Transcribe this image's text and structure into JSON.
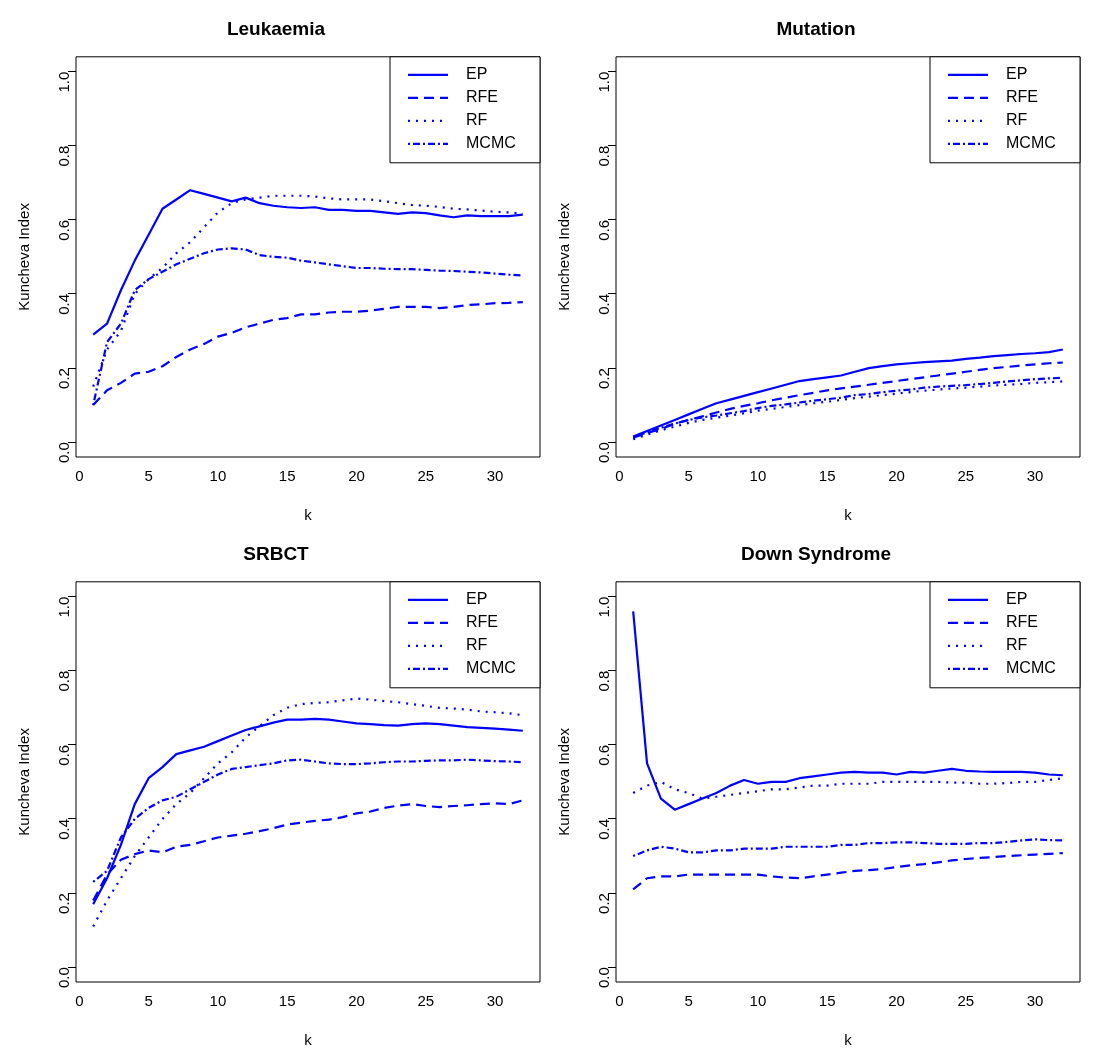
{
  "chart_data": [
    {
      "type": "line",
      "title": "Leukaemia",
      "xlabel": "k",
      "ylabel": "Kuncheva Index",
      "x": [
        1,
        2,
        3,
        4,
        5,
        6,
        7,
        8,
        9,
        10,
        11,
        12,
        13,
        14,
        15,
        16,
        17,
        18,
        19,
        20,
        21,
        22,
        23,
        24,
        25,
        26,
        27,
        28,
        29,
        30,
        31,
        32
      ],
      "xlim": [
        -0.24,
        33.24
      ],
      "xticks": [
        0,
        5,
        10,
        15,
        20,
        25,
        30
      ],
      "ylim": [
        -0.04,
        1.04
      ],
      "yticks": [
        {
          "value": 0,
          "label": "0.0"
        },
        {
          "value": 0.2,
          "label": "0.2"
        },
        {
          "value": 0.4,
          "label": "0.4"
        },
        {
          "value": 0.6,
          "label": "0.6"
        },
        {
          "value": 0.8,
          "label": "0.8"
        },
        {
          "value": 1,
          "label": "1.0"
        }
      ],
      "grid": false,
      "legend": "top right",
      "marker": "none",
      "series": [
        {
          "name": "EP",
          "color": "#0000ff",
          "line_style": "solid",
          "values": [
            0.29,
            0.32,
            0.41,
            0.49,
            0.56,
            0.63,
            0.655,
            0.68,
            0.67,
            0.66,
            0.65,
            0.66,
            0.645,
            0.638,
            0.634,
            0.632,
            0.634,
            0.627,
            0.627,
            0.624,
            0.624,
            0.62,
            0.616,
            0.62,
            0.618,
            0.612,
            0.607,
            0.612,
            0.61,
            0.61,
            0.61,
            0.614
          ]
        },
        {
          "name": "RFE",
          "color": "#0000ff",
          "line_style": "dashed",
          "values": [
            0.1,
            0.14,
            0.16,
            0.185,
            0.19,
            0.205,
            0.23,
            0.25,
            0.265,
            0.285,
            0.295,
            0.31,
            0.32,
            0.33,
            0.335,
            0.345,
            0.345,
            0.35,
            0.352,
            0.352,
            0.355,
            0.36,
            0.365,
            0.365,
            0.365,
            0.362,
            0.365,
            0.37,
            0.372,
            0.375,
            0.376,
            0.378
          ]
        },
        {
          "name": "RF",
          "color": "#0000ff",
          "line_style": "dotted",
          "values": [
            0.15,
            0.25,
            0.3,
            0.4,
            0.44,
            0.47,
            0.51,
            0.54,
            0.58,
            0.62,
            0.645,
            0.655,
            0.66,
            0.665,
            0.665,
            0.665,
            0.663,
            0.658,
            0.655,
            0.655,
            0.655,
            0.65,
            0.645,
            0.64,
            0.638,
            0.635,
            0.63,
            0.628,
            0.625,
            0.622,
            0.62,
            0.617
          ]
        },
        {
          "name": "MCMC",
          "color": "#0000ff",
          "line_style": "dashdot",
          "values": [
            0.1,
            0.27,
            0.32,
            0.41,
            0.44,
            0.46,
            0.48,
            0.495,
            0.51,
            0.52,
            0.523,
            0.52,
            0.505,
            0.5,
            0.498,
            0.49,
            0.485,
            0.48,
            0.475,
            0.47,
            0.47,
            0.468,
            0.467,
            0.467,
            0.465,
            0.463,
            0.462,
            0.46,
            0.458,
            0.455,
            0.452,
            0.45
          ]
        }
      ]
    },
    {
      "type": "line",
      "title": "Mutation",
      "xlabel": "k",
      "ylabel": "Kuncheva Index",
      "x": [
        1,
        2,
        3,
        4,
        5,
        6,
        7,
        8,
        9,
        10,
        11,
        12,
        13,
        14,
        15,
        16,
        17,
        18,
        19,
        20,
        21,
        22,
        23,
        24,
        25,
        26,
        27,
        28,
        29,
        30,
        31,
        32
      ],
      "xlim": [
        -0.24,
        33.24
      ],
      "xticks": [
        0,
        5,
        10,
        15,
        20,
        25,
        30
      ],
      "ylim": [
        -0.04,
        1.04
      ],
      "yticks": [
        {
          "value": 0,
          "label": "0.0"
        },
        {
          "value": 0.2,
          "label": "0.2"
        },
        {
          "value": 0.4,
          "label": "0.4"
        },
        {
          "value": 0.6,
          "label": "0.6"
        },
        {
          "value": 0.8,
          "label": "0.8"
        },
        {
          "value": 1,
          "label": "1.0"
        }
      ],
      "grid": false,
      "legend": "top right",
      "marker": "none",
      "series": [
        {
          "name": "EP",
          "color": "#0000ff",
          "line_style": "solid",
          "values": [
            0.015,
            0.03,
            0.045,
            0.06,
            0.075,
            0.09,
            0.105,
            0.115,
            0.125,
            0.135,
            0.145,
            0.155,
            0.165,
            0.17,
            0.175,
            0.18,
            0.19,
            0.2,
            0.205,
            0.21,
            0.213,
            0.216,
            0.218,
            0.22,
            0.225,
            0.228,
            0.232,
            0.235,
            0.238,
            0.24,
            0.243,
            0.25
          ]
        },
        {
          "name": "RFE",
          "color": "#0000ff",
          "line_style": "dashed",
          "values": [
            0.012,
            0.025,
            0.035,
            0.05,
            0.06,
            0.07,
            0.08,
            0.09,
            0.098,
            0.105,
            0.113,
            0.12,
            0.127,
            0.133,
            0.14,
            0.145,
            0.15,
            0.155,
            0.16,
            0.165,
            0.17,
            0.175,
            0.18,
            0.185,
            0.19,
            0.195,
            0.2,
            0.203,
            0.207,
            0.21,
            0.213,
            0.215
          ]
        },
        {
          "name": "RF",
          "color": "#0000ff",
          "line_style": "dotted",
          "values": [
            0.008,
            0.02,
            0.032,
            0.042,
            0.052,
            0.06,
            0.066,
            0.072,
            0.078,
            0.085,
            0.09,
            0.095,
            0.1,
            0.105,
            0.109,
            0.114,
            0.119,
            0.123,
            0.127,
            0.131,
            0.135,
            0.139,
            0.142,
            0.145,
            0.147,
            0.15,
            0.153,
            0.155,
            0.157,
            0.16,
            0.162,
            0.164
          ]
        },
        {
          "name": "MCMC",
          "color": "#0000ff",
          "line_style": "dashdot",
          "values": [
            0.014,
            0.026,
            0.039,
            0.05,
            0.06,
            0.067,
            0.072,
            0.078,
            0.084,
            0.092,
            0.098,
            0.102,
            0.107,
            0.112,
            0.116,
            0.12,
            0.127,
            0.13,
            0.135,
            0.139,
            0.142,
            0.147,
            0.15,
            0.152,
            0.154,
            0.157,
            0.16,
            0.164,
            0.167,
            0.17,
            0.172,
            0.174
          ]
        }
      ]
    },
    {
      "type": "line",
      "title": "SRBCT",
      "xlabel": "k",
      "ylabel": "Kuncheva Index",
      "x": [
        1,
        2,
        3,
        4,
        5,
        6,
        7,
        8,
        9,
        10,
        11,
        12,
        13,
        14,
        15,
        16,
        17,
        18,
        19,
        20,
        21,
        22,
        23,
        24,
        25,
        26,
        27,
        28,
        29,
        30,
        31,
        32
      ],
      "xlim": [
        -0.24,
        33.24
      ],
      "xticks": [
        0,
        5,
        10,
        15,
        20,
        25,
        30
      ],
      "ylim": [
        -0.04,
        1.04
      ],
      "yticks": [
        {
          "value": 0,
          "label": "0.0"
        },
        {
          "value": 0.2,
          "label": "0.2"
        },
        {
          "value": 0.4,
          "label": "0.4"
        },
        {
          "value": 0.6,
          "label": "0.6"
        },
        {
          "value": 0.8,
          "label": "0.8"
        },
        {
          "value": 1,
          "label": "1.0"
        }
      ],
      "grid": false,
      "legend": "top right",
      "marker": "none",
      "series": [
        {
          "name": "EP",
          "color": "#0000ff",
          "line_style": "solid",
          "values": [
            0.17,
            0.24,
            0.33,
            0.44,
            0.51,
            0.54,
            0.575,
            0.585,
            0.595,
            0.61,
            0.625,
            0.64,
            0.65,
            0.66,
            0.668,
            0.668,
            0.67,
            0.668,
            0.663,
            0.658,
            0.656,
            0.653,
            0.652,
            0.656,
            0.658,
            0.656,
            0.652,
            0.648,
            0.646,
            0.644,
            0.641,
            0.638
          ]
        },
        {
          "name": "RFE",
          "color": "#0000ff",
          "line_style": "dashed",
          "values": [
            0.18,
            0.25,
            0.29,
            0.305,
            0.315,
            0.31,
            0.325,
            0.33,
            0.34,
            0.35,
            0.355,
            0.36,
            0.367,
            0.375,
            0.385,
            0.39,
            0.395,
            0.398,
            0.405,
            0.415,
            0.42,
            0.43,
            0.436,
            0.44,
            0.435,
            0.432,
            0.435,
            0.437,
            0.44,
            0.442,
            0.44,
            0.45
          ]
        },
        {
          "name": "RF",
          "color": "#0000ff",
          "line_style": "dotted",
          "values": [
            0.11,
            0.18,
            0.24,
            0.3,
            0.35,
            0.4,
            0.44,
            0.47,
            0.51,
            0.55,
            0.58,
            0.62,
            0.65,
            0.68,
            0.7,
            0.71,
            0.713,
            0.715,
            0.72,
            0.725,
            0.722,
            0.718,
            0.715,
            0.71,
            0.705,
            0.7,
            0.698,
            0.695,
            0.69,
            0.688,
            0.685,
            0.68
          ]
        },
        {
          "name": "MCMC",
          "color": "#0000ff",
          "line_style": "dashdot",
          "values": [
            0.23,
            0.26,
            0.35,
            0.4,
            0.43,
            0.45,
            0.46,
            0.48,
            0.5,
            0.52,
            0.535,
            0.54,
            0.545,
            0.55,
            0.558,
            0.56,
            0.555,
            0.55,
            0.548,
            0.548,
            0.55,
            0.553,
            0.555,
            0.555,
            0.557,
            0.558,
            0.558,
            0.56,
            0.558,
            0.556,
            0.555,
            0.553
          ]
        }
      ]
    },
    {
      "type": "line",
      "title": "Down Syndrome",
      "xlabel": "k",
      "ylabel": "Kuncheva Index",
      "x": [
        1,
        2,
        3,
        4,
        5,
        6,
        7,
        8,
        9,
        10,
        11,
        12,
        13,
        14,
        15,
        16,
        17,
        18,
        19,
        20,
        21,
        22,
        23,
        24,
        25,
        26,
        27,
        28,
        29,
        30,
        31,
        32
      ],
      "xlim": [
        -0.24,
        33.24
      ],
      "xticks": [
        0,
        5,
        10,
        15,
        20,
        25,
        30
      ],
      "ylim": [
        -0.04,
        1.04
      ],
      "yticks": [
        {
          "value": 0,
          "label": "0.0"
        },
        {
          "value": 0.2,
          "label": "0.2"
        },
        {
          "value": 0.4,
          "label": "0.4"
        },
        {
          "value": 0.6,
          "label": "0.6"
        },
        {
          "value": 0.8,
          "label": "0.8"
        },
        {
          "value": 1,
          "label": "1.0"
        }
      ],
      "grid": false,
      "legend": "top right",
      "marker": "none",
      "series": [
        {
          "name": "EP",
          "color": "#0000ff",
          "line_style": "solid",
          "values": [
            0.96,
            0.55,
            0.455,
            0.425,
            0.44,
            0.455,
            0.47,
            0.49,
            0.505,
            0.495,
            0.5,
            0.5,
            0.51,
            0.515,
            0.52,
            0.525,
            0.527,
            0.525,
            0.525,
            0.52,
            0.527,
            0.525,
            0.53,
            0.535,
            0.53,
            0.528,
            0.527,
            0.527,
            0.527,
            0.525,
            0.52,
            0.518
          ]
        },
        {
          "name": "RFE",
          "color": "#0000ff",
          "line_style": "dashed",
          "values": [
            0.21,
            0.24,
            0.245,
            0.245,
            0.25,
            0.25,
            0.25,
            0.25,
            0.25,
            0.25,
            0.245,
            0.242,
            0.24,
            0.245,
            0.25,
            0.255,
            0.26,
            0.262,
            0.265,
            0.27,
            0.275,
            0.278,
            0.283,
            0.288,
            0.292,
            0.295,
            0.297,
            0.3,
            0.302,
            0.304,
            0.306,
            0.308
          ]
        },
        {
          "name": "RF",
          "color": "#0000ff",
          "line_style": "dotted",
          "values": [
            0.47,
            0.49,
            0.5,
            0.48,
            0.47,
            0.455,
            0.46,
            0.465,
            0.47,
            0.475,
            0.48,
            0.48,
            0.485,
            0.49,
            0.49,
            0.495,
            0.495,
            0.495,
            0.5,
            0.5,
            0.5,
            0.5,
            0.5,
            0.498,
            0.498,
            0.495,
            0.495,
            0.497,
            0.5,
            0.5,
            0.505,
            0.51
          ]
        },
        {
          "name": "MCMC",
          "color": "#0000ff",
          "line_style": "dashdot",
          "values": [
            0.3,
            0.315,
            0.325,
            0.32,
            0.31,
            0.31,
            0.315,
            0.315,
            0.32,
            0.32,
            0.32,
            0.325,
            0.325,
            0.325,
            0.325,
            0.33,
            0.33,
            0.335,
            0.335,
            0.337,
            0.337,
            0.335,
            0.333,
            0.333,
            0.333,
            0.335,
            0.335,
            0.338,
            0.342,
            0.345,
            0.343,
            0.342
          ]
        }
      ]
    }
  ]
}
